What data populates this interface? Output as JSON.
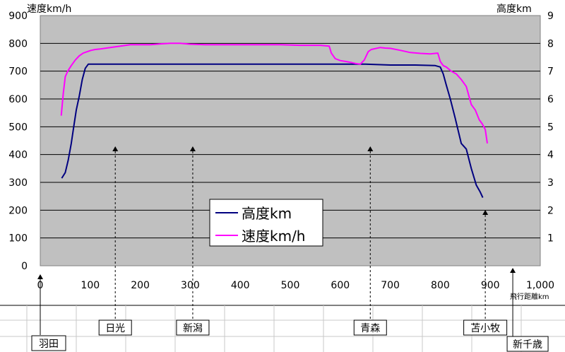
{
  "chart_data": {
    "type": "line",
    "title": "",
    "xlabel": "飛行距離km",
    "ylabel_left": "速度km/h",
    "ylabel_right": "高度km",
    "xlim": [
      0,
      1000
    ],
    "ylim_left": [
      0,
      900
    ],
    "ylim_right": [
      0,
      9
    ],
    "x_ticks": [
      "0",
      "100",
      "200",
      "300",
      "400",
      "500",
      "600",
      "700",
      "800",
      "900",
      "1,000"
    ],
    "y_left_ticks": [
      "0",
      "100",
      "200",
      "300",
      "400",
      "500",
      "600",
      "700",
      "800",
      "900"
    ],
    "y_right_ticks": [
      "",
      "1",
      "2",
      "3",
      "4",
      "5",
      "6",
      "7",
      "8",
      "9"
    ],
    "grid": true,
    "legend_position": "center-bottom",
    "colors": {
      "plot_background": "#c0c0c0",
      "altitude": "#000080",
      "speed": "#ff00ff"
    },
    "series": [
      {
        "name": "高度km",
        "axis": "right",
        "color": "#000080",
        "x": [
          43,
          50,
          56,
          62,
          67,
          72,
          78,
          84,
          90,
          96,
          100,
          106,
          120,
          160,
          200,
          250,
          300,
          350,
          400,
          450,
          500,
          550,
          600,
          650,
          700,
          750,
          790,
          800,
          806,
          812,
          820,
          830,
          842,
          852,
          862,
          872,
          880,
          885
        ],
        "y": [
          3.15,
          3.35,
          3.8,
          4.4,
          5.0,
          5.6,
          6.1,
          6.7,
          7.1,
          7.25,
          7.25,
          7.25,
          7.25,
          7.25,
          7.25,
          7.25,
          7.25,
          7.25,
          7.25,
          7.25,
          7.25,
          7.25,
          7.25,
          7.25,
          7.22,
          7.22,
          7.2,
          7.15,
          6.9,
          6.5,
          6.0,
          5.3,
          4.4,
          4.2,
          3.5,
          2.9,
          2.65,
          2.45
        ]
      },
      {
        "name": "速度km/h",
        "axis": "left",
        "color": "#ff00ff",
        "x": [
          42,
          46,
          50,
          55,
          62,
          70,
          78,
          86,
          94,
          102,
          110,
          120,
          140,
          160,
          180,
          200,
          220,
          240,
          260,
          280,
          300,
          330,
          360,
          400,
          440,
          480,
          520,
          560,
          578,
          582,
          590,
          600,
          610,
          620,
          630,
          640,
          648,
          656,
          662,
          680,
          690,
          700,
          720,
          740,
          760,
          780,
          795,
          800,
          806,
          812,
          822,
          832,
          842,
          852,
          862,
          870,
          878,
          884,
          890,
          894
        ],
        "y": [
          540,
          620,
          680,
          700,
          720,
          740,
          755,
          765,
          770,
          775,
          778,
          780,
          785,
          790,
          795,
          795,
          795,
          798,
          800,
          800,
          797,
          795,
          795,
          795,
          795,
          795,
          793,
          793,
          790,
          765,
          745,
          738,
          735,
          732,
          728,
          725,
          740,
          770,
          778,
          785,
          783,
          782,
          775,
          767,
          764,
          762,
          765,
          735,
          720,
          715,
          700,
          690,
          670,
          645,
          580,
          560,
          525,
          510,
          490,
          440
        ]
      }
    ],
    "annotations": [
      {
        "label": "羽田",
        "x": 0
      },
      {
        "label": "日光",
        "x": 150
      },
      {
        "label": "新潟",
        "x": 305
      },
      {
        "label": "青森",
        "x": 660
      },
      {
        "label": "苫小牧",
        "x": 890
      },
      {
        "label": "新千歳",
        "x": 945
      }
    ]
  }
}
